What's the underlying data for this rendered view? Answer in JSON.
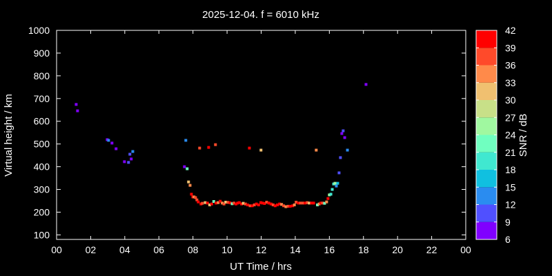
{
  "chart_data": {
    "type": "scatter",
    "title": "2025-12-04. f = 6010 kHz",
    "xlabel": "UT Time / hrs",
    "ylabel": "Virtual height / km",
    "xlim": [
      0,
      24
    ],
    "ylim": [
      80,
      1000
    ],
    "xticks": [
      "00",
      "02",
      "04",
      "06",
      "08",
      "10",
      "12",
      "14",
      "16",
      "18",
      "20",
      "22",
      "00"
    ],
    "yticks": [
      100,
      200,
      300,
      400,
      500,
      600,
      700,
      800,
      900,
      1000
    ],
    "grid": false,
    "colorbar": {
      "label": "SNR / dB",
      "range": [
        6,
        42
      ],
      "ticks": [
        6,
        9,
        12,
        15,
        18,
        21,
        24,
        27,
        30,
        33,
        36,
        39,
        42
      ],
      "colors": [
        "#8000ff",
        "#5050ff",
        "#2a8cf0",
        "#10c0e0",
        "#40e8d0",
        "#70ffc0",
        "#a0f8a0",
        "#c8e088",
        "#f0c070",
        "#ff8a4a",
        "#ff4a2a",
        "#ff0000"
      ]
    },
    "points_format": [
      "hour",
      "height_km",
      "snr_db"
    ],
    "points": [
      [
        1.15,
        674,
        9
      ],
      [
        1.23,
        646,
        9
      ],
      [
        2.97,
        519,
        9
      ],
      [
        3.05,
        516,
        15
      ],
      [
        3.25,
        504,
        9
      ],
      [
        3.49,
        479,
        9
      ],
      [
        4.47,
        467,
        15
      ],
      [
        4.3,
        455,
        12
      ],
      [
        4.38,
        434,
        9
      ],
      [
        3.98,
        422,
        9
      ],
      [
        4.22,
        419,
        12
      ],
      [
        7.58,
        516,
        15
      ],
      [
        8.39,
        482,
        39
      ],
      [
        7.5,
        400,
        9
      ],
      [
        7.66,
        391,
        24
      ],
      [
        7.74,
        333,
        33
      ],
      [
        7.83,
        318,
        36
      ],
      [
        7.91,
        279,
        42
      ],
      [
        7.99,
        267,
        42
      ],
      [
        8.06,
        267,
        36
      ],
      [
        8.15,
        264,
        39
      ],
      [
        8.23,
        254,
        39
      ],
      [
        8.31,
        245,
        42
      ],
      [
        8.47,
        236,
        42
      ],
      [
        8.55,
        239,
        39
      ],
      [
        8.72,
        242,
        33
      ],
      [
        8.92,
        485,
        42
      ],
      [
        9.32,
        497,
        39
      ],
      [
        11.31,
        482,
        42
      ],
      [
        11.99,
        473,
        33
      ],
      [
        15.23,
        473,
        36
      ],
      [
        8.85,
        240,
        42
      ],
      [
        8.98,
        232,
        33
      ],
      [
        9.1,
        236,
        42
      ],
      [
        9.22,
        247,
        24
      ],
      [
        9.35,
        240,
        42
      ],
      [
        9.48,
        242,
        36
      ],
      [
        9.6,
        248,
        42
      ],
      [
        9.72,
        240,
        36
      ],
      [
        9.82,
        236,
        39
      ],
      [
        9.92,
        244,
        33
      ],
      [
        10.05,
        243,
        39
      ],
      [
        10.18,
        241,
        42
      ],
      [
        10.3,
        237,
        24
      ],
      [
        10.4,
        240,
        39
      ],
      [
        10.52,
        236,
        42
      ],
      [
        10.62,
        240,
        42
      ],
      [
        10.72,
        242,
        42
      ],
      [
        10.85,
        236,
        42
      ],
      [
        10.95,
        239,
        33
      ],
      [
        11.08,
        236,
        39
      ],
      [
        11.2,
        232,
        42
      ],
      [
        11.35,
        228,
        39
      ],
      [
        11.48,
        228,
        42
      ],
      [
        11.6,
        232,
        39
      ],
      [
        11.72,
        236,
        42
      ],
      [
        11.85,
        232,
        42
      ],
      [
        11.98,
        242,
        42
      ],
      [
        12.08,
        240,
        42
      ],
      [
        12.2,
        238,
        42
      ],
      [
        12.32,
        244,
        39
      ],
      [
        12.45,
        240,
        42
      ],
      [
        12.58,
        236,
        42
      ],
      [
        12.7,
        232,
        39
      ],
      [
        12.82,
        228,
        42
      ],
      [
        12.95,
        232,
        42
      ],
      [
        13.08,
        236,
        42
      ],
      [
        13.2,
        234,
        36
      ],
      [
        13.32,
        228,
        39
      ],
      [
        13.45,
        224,
        36
      ],
      [
        13.58,
        226,
        39
      ],
      [
        13.7,
        226,
        42
      ],
      [
        13.85,
        228,
        42
      ],
      [
        13.95,
        232,
        36
      ],
      [
        14.05,
        244,
        39
      ],
      [
        14.18,
        240,
        42
      ],
      [
        14.3,
        240,
        39
      ],
      [
        14.45,
        240,
        39
      ],
      [
        14.58,
        240,
        42
      ],
      [
        14.7,
        242,
        39
      ],
      [
        14.82,
        240,
        33
      ],
      [
        14.95,
        240,
        42
      ],
      [
        15.08,
        240,
        42
      ],
      [
        15.3,
        232,
        24
      ],
      [
        15.4,
        236,
        36
      ],
      [
        15.5,
        240,
        42
      ],
      [
        15.6,
        240,
        39
      ],
      [
        15.72,
        239,
        24
      ],
      [
        15.84,
        245,
        36
      ],
      [
        15.92,
        260,
        42
      ],
      [
        16.0,
        276,
        27
      ],
      [
        16.09,
        279,
        21
      ],
      [
        16.17,
        300,
        21
      ],
      [
        16.25,
        324,
        21
      ],
      [
        16.33,
        327,
        27
      ],
      [
        16.41,
        315,
        15
      ],
      [
        16.49,
        327,
        18
      ],
      [
        16.57,
        373,
        12
      ],
      [
        16.65,
        440,
        12
      ],
      [
        16.73,
        546,
        9
      ],
      [
        16.81,
        558,
        12
      ],
      [
        16.9,
        528,
        9
      ],
      [
        17.06,
        473,
        15
      ],
      [
        18.15,
        762,
        9
      ]
    ]
  }
}
